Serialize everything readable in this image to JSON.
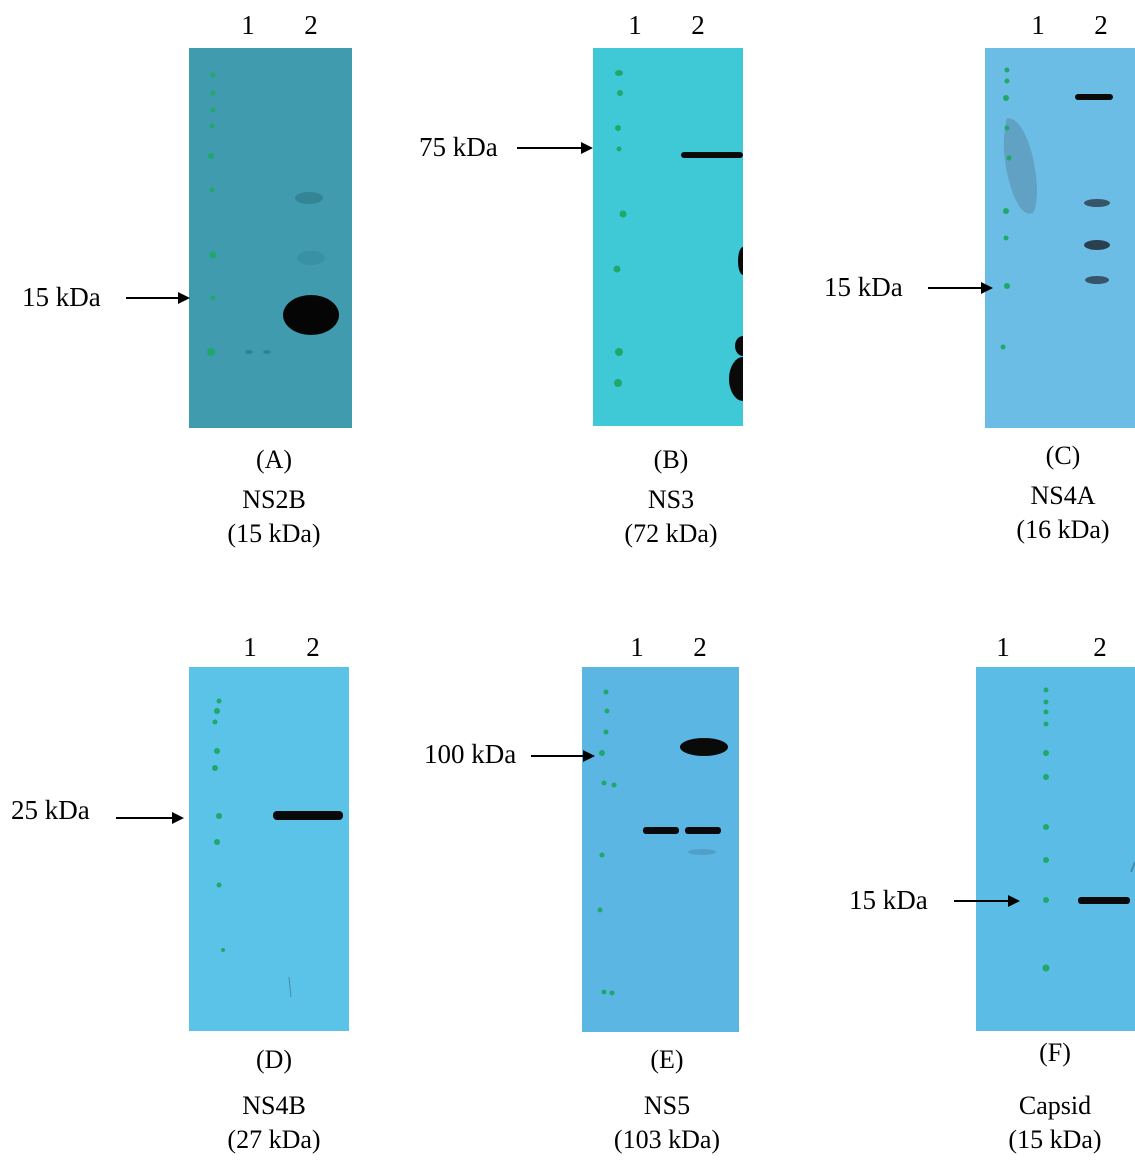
{
  "panels": [
    {
      "id": "A",
      "letter": "(A)",
      "protein": "NS2B",
      "mass": "(15 kDa)",
      "lanes": [
        "1",
        "2"
      ],
      "marker": "15 kDa",
      "membrane_color": "#3f9bad"
    },
    {
      "id": "B",
      "letter": "(B)",
      "protein": "NS3",
      "mass": "(72 kDa)",
      "lanes": [
        "1",
        "2"
      ],
      "marker": "75 kDa",
      "membrane_color": "#3fc9d6"
    },
    {
      "id": "C",
      "letter": "(C)",
      "protein": "NS4A",
      "mass": "(16 kDa)",
      "lanes": [
        "1",
        "2"
      ],
      "marker": "15 kDa",
      "membrane_color": "#6bbde6"
    },
    {
      "id": "D",
      "letter": "(D)",
      "protein": "NS4B",
      "mass": "(27 kDa)",
      "lanes": [
        "1",
        "2"
      ],
      "marker": "25 kDa",
      "membrane_color": "#5bc2e8"
    },
    {
      "id": "E",
      "letter": "(E)",
      "protein": "NS5",
      "mass": "(103 kDa)",
      "lanes": [
        "1",
        "2"
      ],
      "marker": "100 kDa",
      "membrane_color": "#5bb6e3"
    },
    {
      "id": "F",
      "letter": "(F)",
      "protein": "Capsid",
      "mass": "(15 kDa)",
      "lanes": [
        "1",
        "2"
      ],
      "marker": "15 kDa",
      "membrane_color": "#5bbde6"
    }
  ]
}
